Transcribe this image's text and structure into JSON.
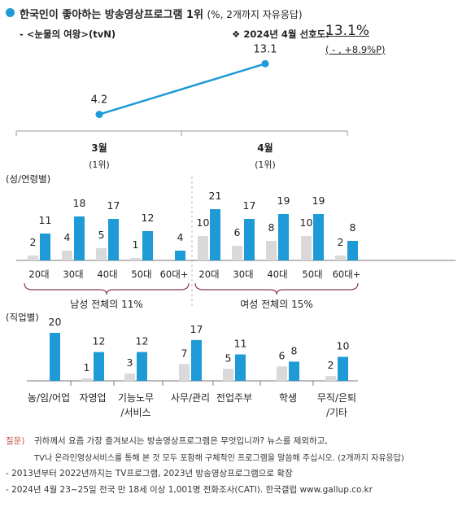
{
  "header": {
    "title": "한국인이 좋아하는 방송영상프로그램 1위",
    "title_note": "(%, 2개까지 자유응답)",
    "program": "- <눈물의 여왕>(tvN)",
    "pref_label": "❖ 2024년 4월 선호도:",
    "pref_value": "13.1%",
    "pref_change": "( - , +8.9%P)"
  },
  "colors": {
    "accent": "#1e9ad6",
    "gray": "#d9d9d9",
    "dashed": "#bbbbbb",
    "brace": "#8b3a5a",
    "footnote": "#c0504d"
  },
  "chart_data": [
    {
      "type": "line",
      "categories": [
        "3월",
        "4월"
      ],
      "category_sub": [
        "(1위)",
        "(1위)"
      ],
      "values": [
        4.2,
        13.1
      ]
    },
    {
      "type": "bar",
      "section_label": "(성/연령별)",
      "categories": [
        "20대",
        "30대",
        "40대",
        "50대",
        "60대+",
        "20대",
        "30대",
        "40대",
        "50대",
        "60대+"
      ],
      "series": [
        {
          "values": [
            2,
            4,
            5,
            1,
            null,
            10,
            6,
            8,
            10,
            2
          ]
        },
        {
          "values": [
            11,
            18,
            17,
            12,
            4,
            21,
            17,
            19,
            19,
            8
          ]
        }
      ],
      "groups": [
        "남성 전체의 11%",
        "여성 전체의 15%"
      ]
    },
    {
      "type": "bar",
      "section_label": "(직업별)",
      "categories": [
        "농/임/어업",
        "자영업",
        "기능노무/서비스",
        "사무/관리",
        "전업주부",
        "학생",
        "무직/은퇴/기타"
      ],
      "category_lines": [
        [
          "농/임/어업"
        ],
        [
          "자영업"
        ],
        [
          "기능노무",
          "/서비스"
        ],
        [
          "사무/관리"
        ],
        [
          "전업주부"
        ],
        [
          "학생"
        ],
        [
          "무직/은퇴",
          "/기타"
        ]
      ],
      "series": [
        {
          "values": [
            null,
            1,
            3,
            7,
            5,
            6,
            2
          ]
        },
        {
          "values": [
            20,
            12,
            12,
            17,
            11,
            8,
            10
          ]
        }
      ]
    }
  ],
  "footer": {
    "q_label": "질문)",
    "q_line1": "귀하께서 요즘 가장 즐겨보시는 방송영상프로그램은 무엇입니까? 뉴스를 제외하고,",
    "q_line2": "TV나 온라인영상서비스를 통해 본 것 모두 포함해 구체적인 프로그램을 말씀해 주십시오. (2개까지 자유응답)",
    "note1": "- 2013년부터 2022년까지는 TV프로그램, 2023년 방송영상프로그램으로 확장",
    "note2": "- 2024년 4월 23~25일 전국 만 18세 이상 1,001명 전화조사(CATI). 한국갤럽 www.gallup.co.kr"
  }
}
